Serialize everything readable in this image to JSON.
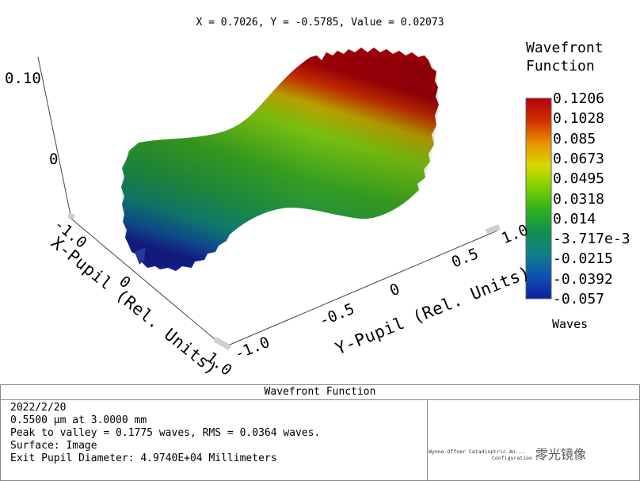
{
  "readout": "X = 0.7026, Y = -0.5785, Value = 0.02073",
  "colorbar": {
    "title_line1": "Wavefront",
    "title_line2": "Function",
    "ticks": [
      "0.1206",
      "0.1028",
      "0.085",
      "0.0673",
      "0.0495",
      "0.0318",
      "0.014",
      "-3.717e-3",
      "-0.0215",
      "-0.0392",
      "-0.057"
    ],
    "units": "Waves",
    "colors": [
      "#b40010",
      "#d03000",
      "#e89000",
      "#d8d800",
      "#80d000",
      "#30b020",
      "#109050",
      "#108088",
      "#1050b0",
      "#1020a0"
    ]
  },
  "axes": {
    "z_ticks": [
      "0.10",
      "0"
    ],
    "x_ticks": [
      "-1.0",
      "0",
      "1.0"
    ],
    "x_label": "X-Pupil (Rel. Units)",
    "y_ticks": [
      "-1.0",
      "-0.5",
      "0",
      "0.5",
      "1.0"
    ],
    "y_label": "Y-Pupil (Rel. Units)"
  },
  "chart_data": {
    "type": "surface",
    "title": "Wavefront Function",
    "x_label": "X-Pupil (Rel. Units)",
    "y_label": "Y-Pupil (Rel. Units)",
    "z_ticks": [
      0.1,
      0
    ],
    "x_range": [
      -1.0,
      1.0
    ],
    "y_range": [
      -1.0,
      1.0
    ],
    "value_range": [
      -0.057,
      0.1206
    ],
    "value_units": "Waves",
    "peak_to_valley": 0.1775,
    "rms": 0.0364
  },
  "info": {
    "header": "Wavefront Function",
    "lines": [
      "2022/2/20",
      "0.5500 µm at 3.0000 mm",
      "Peak to valley = 0.1775 waves, RMS = 0.0364 waves.",
      "Surface: Image",
      "Exit Pupil Diameter: 4.9740E+04 Millimeters"
    ],
    "right_line1": "Wynne-Offner Catadioptric An...",
    "right_line2": "Configuration 1",
    "watermark": "零光镜像"
  }
}
